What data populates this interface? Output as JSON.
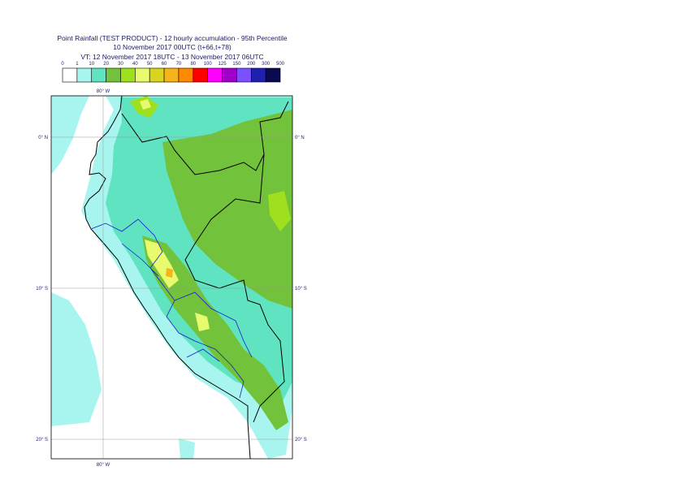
{
  "header": {
    "title": "Point Rainfall (TEST PRODUCT) - 12 hourly accumulation - 95th Percentile",
    "subtitle": "10 November 2017 00UTC (t+66,t+78)",
    "valid_time": "VT: 12 November 2017 18UTC - 13 November 2017 06UTC"
  },
  "legend": {
    "ticks": [
      0,
      1,
      10,
      20,
      30,
      40,
      50,
      60,
      70,
      80,
      100,
      125,
      150,
      200,
      300,
      500
    ],
    "colors": [
      "#ffffff",
      "#a8f5f0",
      "#5fe3c0",
      "#72c23c",
      "#9ee01e",
      "#e8fa6e",
      "#d9d41e",
      "#f5b51a",
      "#ff8a00",
      "#ff0000",
      "#ff00ff",
      "#a000c8",
      "#7a50ff",
      "#2020b0",
      "#0a0a50"
    ]
  },
  "map": {
    "xlim": [
      -83.44,
      -67.47
    ],
    "ylim": [
      -21.29,
      2.74
    ],
    "lon_lines": [
      {
        "value": -80,
        "label": "80° W"
      }
    ],
    "lat_lines": [
      {
        "value": 0,
        "label": "0° N"
      },
      {
        "value": -10,
        "label": "10° S"
      },
      {
        "value": -20,
        "label": "20° S"
      }
    ]
  }
}
